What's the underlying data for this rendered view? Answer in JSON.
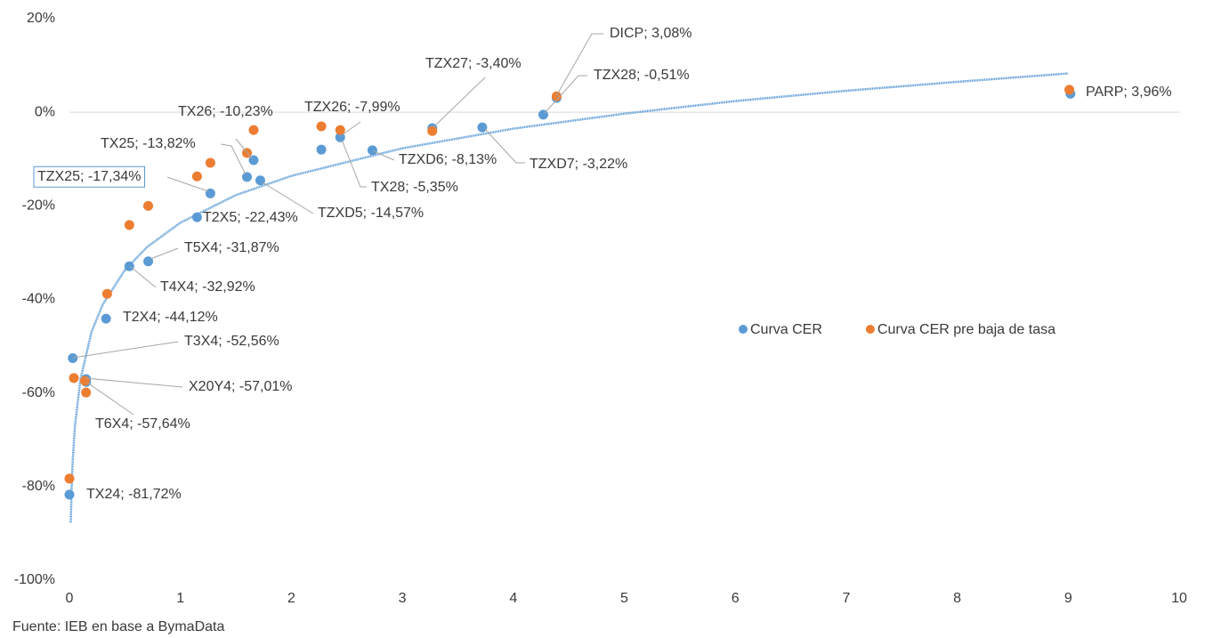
{
  "chart_data": {
    "type": "scatter",
    "source": "Fuente: IEB en base a BymaData",
    "xlim": [
      0,
      10
    ],
    "xticks": [
      0,
      1,
      2,
      3,
      4,
      5,
      6,
      7,
      8,
      9,
      10
    ],
    "ylim": [
      -100,
      20
    ],
    "yticks": [
      {
        "value": -100,
        "label": "-100%"
      },
      {
        "value": -80,
        "label": "-80%"
      },
      {
        "value": -60,
        "label": "-60%"
      },
      {
        "value": -40,
        "label": "-40%"
      },
      {
        "value": -20,
        "label": "-20%"
      },
      {
        "value": 0,
        "label": "0%"
      },
      {
        "value": 20,
        "label": "20%"
      }
    ],
    "grid": false,
    "legend": "right",
    "series": [
      {
        "name": "Curva CER",
        "color": "#5b9bd5",
        "x": [
          0,
          0.03,
          0.15,
          0.15,
          0.33,
          0.54,
          0.71,
          1.15,
          1.27,
          1.6,
          1.72,
          1.66,
          2.27,
          2.44,
          2.73,
          3.27,
          3.72,
          4.27,
          4.39,
          9.02
        ],
        "values": [
          -81.72,
          -52.56,
          -57.01,
          -57.64,
          -44.12,
          -32.92,
          -31.87,
          -22.43,
          -17.34,
          -13.82,
          -14.57,
          -10.23,
          -7.99,
          -5.35,
          -8.13,
          -3.4,
          -3.22,
          -0.51,
          3.08,
          3.96
        ],
        "value_labels": [
          "TX24; -81,72%",
          "T3X4; -52,56%",
          "X20Y4; -57,01%",
          "T6X4; -57,64%",
          "T2X4; -44,12%",
          "T4X4; -32,92%",
          "T5X4; -31,87%",
          "T2X5; -22,43%",
          "TZX25; -17,34%",
          "TX25; -13,82%",
          "TZXD5; -14,57%",
          "TX26; -10,23%",
          "TZX26; -7,99%",
          "TX28; -5,35%",
          "TZXD6; -8,13%",
          "TZX27; -3,40%",
          "TZXD7; -3,22%",
          "TZX28; -0,51%",
          "DICP; 3,08%",
          "PARP; 3,96%"
        ]
      },
      {
        "name": "Curva CER pre baja de tasa",
        "color": "#ed7d31",
        "x": [
          0,
          0.04,
          0.14,
          0.15,
          0.34,
          0.54,
          0.71,
          1.15,
          1.27,
          1.6,
          1.66,
          2.27,
          2.44,
          3.27,
          4.39,
          9.01
        ],
        "values": [
          -78.3,
          -56.8,
          -57.4,
          -59.9,
          -38.8,
          -24.1,
          -20.0,
          -13.7,
          -10.8,
          -8.7,
          -3.8,
          -3.0,
          -3.8,
          -4.0,
          3.4,
          4.8
        ]
      }
    ],
    "trendline": {
      "color": "#5b9bd5",
      "x": [
        0.012,
        0.02,
        0.03,
        0.05,
        0.1,
        0.2,
        0.3,
        0.5,
        0.7,
        1,
        1.5,
        2,
        3,
        4,
        5,
        6,
        7,
        8,
        9
      ],
      "values": [
        -87.7,
        -80.3,
        -74.4,
        -67.0,
        -57.0,
        -46.9,
        -41.1,
        -33.7,
        -28.8,
        -23.6,
        -17.7,
        -13.6,
        -7.7,
        -3.5,
        -0.3,
        2.4,
        4.6,
        6.5,
        8.3
      ]
    }
  }
}
